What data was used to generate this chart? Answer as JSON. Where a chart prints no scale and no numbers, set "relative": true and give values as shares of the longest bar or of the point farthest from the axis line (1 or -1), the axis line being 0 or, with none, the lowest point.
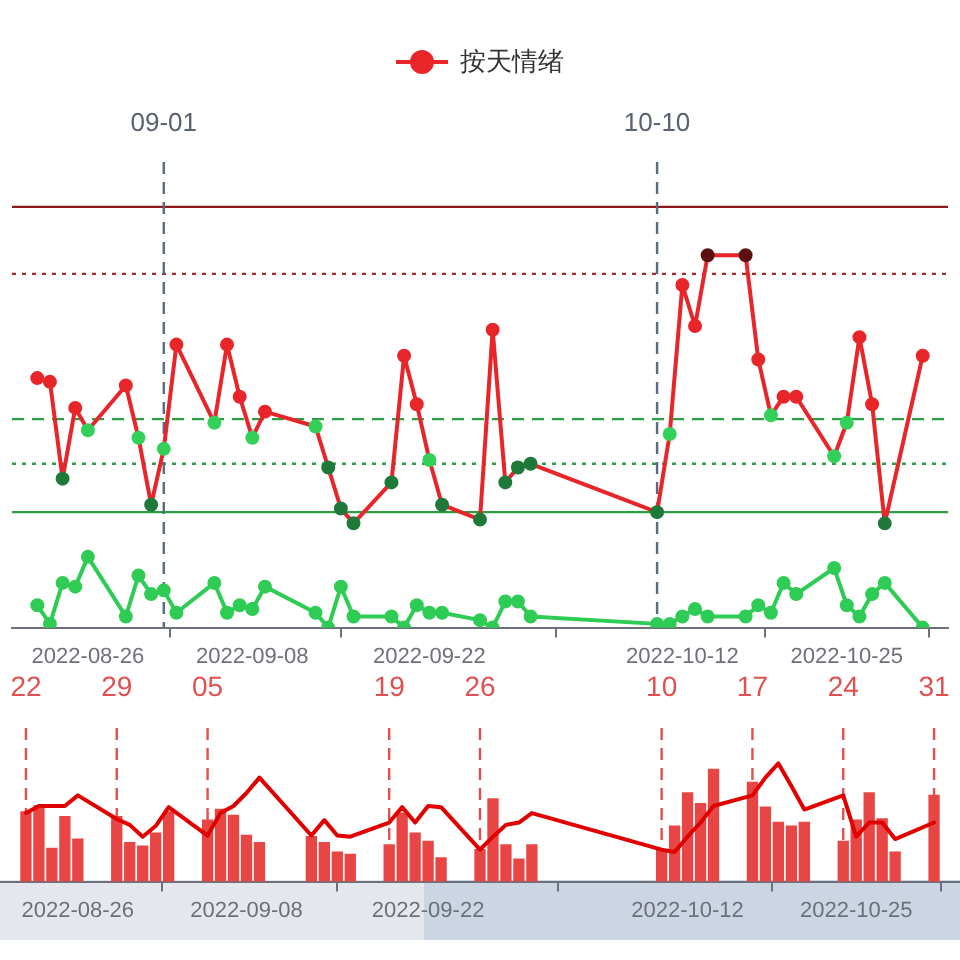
{
  "chart_data": [
    {
      "type": "line",
      "relative": true,
      "legend": "top",
      "marker": "circle",
      "xlim": [
        "2022-08-20",
        "2022-11-02"
      ],
      "x": [
        "2022-08-22",
        "2022-08-23",
        "2022-08-24",
        "2022-08-25",
        "2022-08-26",
        "2022-08-29",
        "2022-08-30",
        "2022-08-31",
        "2022-09-01",
        "2022-09-02",
        "2022-09-05",
        "2022-09-06",
        "2022-09-07",
        "2022-09-08",
        "2022-09-09",
        "2022-09-13",
        "2022-09-14",
        "2022-09-15",
        "2022-09-16",
        "2022-09-19",
        "2022-09-20",
        "2022-09-21",
        "2022-09-22",
        "2022-09-23",
        "2022-09-26",
        "2022-09-27",
        "2022-09-28",
        "2022-09-29",
        "2022-09-30",
        "2022-10-10",
        "2022-10-11",
        "2022-10-12",
        "2022-10-13",
        "2022-10-14",
        "2022-10-17",
        "2022-10-18",
        "2022-10-19",
        "2022-10-20",
        "2022-10-21",
        "2022-10-24",
        "2022-10-25",
        "2022-10-26",
        "2022-10-27",
        "2022-10-28",
        "2022-10-31"
      ],
      "xticks": [
        "2022-08-26",
        "2022-09-08",
        "2022-09-22",
        "2022-10-12",
        "2022-10-25"
      ],
      "series": [
        {
          "name": "按天情绪",
          "color": "#e8262a",
          "values": [
            0.67,
            0.66,
            0.4,
            0.59,
            0.53,
            0.65,
            0.51,
            0.33,
            0.48,
            0.76,
            0.55,
            0.76,
            0.62,
            0.51,
            0.58,
            0.54,
            0.43,
            0.32,
            0.28,
            0.39,
            0.73,
            0.6,
            0.45,
            0.33,
            0.29,
            0.8,
            0.39,
            0.43,
            0.44,
            0.31,
            0.52,
            0.92,
            0.81,
            1,
            1,
            0.72,
            0.57,
            0.62,
            0.62,
            0.46,
            0.55,
            0.78,
            0.6,
            0.28,
            0.73
          ],
          "colors": [
            "#e8262a",
            "#e8262a",
            "#1f7a3a",
            "#e8262a",
            "#33d05a",
            "#e8262a",
            "#33d05a",
            "#1f7a3a",
            "#33d05a",
            "#e8262a",
            "#33d05a",
            "#e8262a",
            "#e8262a",
            "#33d05a",
            "#e8262a",
            "#33d05a",
            "#1f7a3a",
            "#1f7a3a",
            "#1f7a3a",
            "#1f7a3a",
            "#e8262a",
            "#e8262a",
            "#33d05a",
            "#1f7a3a",
            "#1f7a3a",
            "#e8262a",
            "#1f7a3a",
            "#1f7a3a",
            "#1f7a3a",
            "#1f7a3a",
            "#33d05a",
            "#e8262a",
            "#e8262a",
            "#5c1010",
            "#5c1010",
            "#e8262a",
            "#33d05a",
            "#e8262a",
            "#e8262a",
            "#33d05a",
            "#33d05a",
            "#e8262a",
            "#e8262a",
            "#1f7a3a",
            "#e8262a"
          ]
        },
        {
          "color": "#2ecc55",
          "values": [
            0.06,
            0.01,
            0.12,
            0.11,
            0.19,
            0.03,
            0.14,
            0.09,
            0.1,
            0.04,
            0.12,
            0.04,
            0.06,
            0.05,
            0.11,
            0.04,
            0,
            0.11,
            0.03,
            0.03,
            0,
            0.06,
            0.04,
            0.04,
            0.02,
            0,
            0.07,
            0.07,
            0.03,
            0.01,
            0.01,
            0.03,
            0.05,
            0.03,
            0.03,
            0.06,
            0.04,
            0.12,
            0.09,
            0.16,
            0.06,
            0.03,
            0.09,
            0.12,
            0
          ]
        }
      ],
      "ref_lines": [
        {
          "axis": "y",
          "value": 1.13,
          "color": "#8b1a1a",
          "line_style": "solid"
        },
        {
          "axis": "y",
          "value": 0.95,
          "color": "#a52a2a",
          "line_style": "dotted"
        },
        {
          "axis": "y",
          "value": 0.56,
          "color": "#2e9e44",
          "line_style": "dashed"
        },
        {
          "axis": "y",
          "value": 0.44,
          "color": "#2e9e44",
          "line_style": "dotted"
        },
        {
          "axis": "y",
          "value": 0.31,
          "color": "#2e9e44",
          "line_style": "solid"
        },
        {
          "axis": "x",
          "value": "2022-09-01",
          "label": "09-01",
          "color": "#5a6a80",
          "line_style": "dashed"
        },
        {
          "axis": "x",
          "value": "2022-10-10",
          "label": "10-10",
          "color": "#5a6a80",
          "line_style": "dashed"
        }
      ]
    },
    {
      "type": "bar",
      "relative": true,
      "xlim": [
        "2022-08-20",
        "2022-11-02"
      ],
      "x": [
        "2022-08-22",
        "2022-08-23",
        "2022-08-24",
        "2022-08-25",
        "2022-08-26",
        "2022-08-29",
        "2022-08-30",
        "2022-08-31",
        "2022-09-01",
        "2022-09-02",
        "2022-09-05",
        "2022-09-06",
        "2022-09-07",
        "2022-09-08",
        "2022-09-09",
        "2022-09-13",
        "2022-09-14",
        "2022-09-15",
        "2022-09-16",
        "2022-09-19",
        "2022-09-20",
        "2022-09-21",
        "2022-09-22",
        "2022-09-23",
        "2022-09-26",
        "2022-09-27",
        "2022-09-28",
        "2022-09-29",
        "2022-09-30",
        "2022-10-10",
        "2022-10-11",
        "2022-10-12",
        "2022-10-13",
        "2022-10-14",
        "2022-10-17",
        "2022-10-18",
        "2022-10-19",
        "2022-10-20",
        "2022-10-21",
        "2022-10-24",
        "2022-10-25",
        "2022-10-26",
        "2022-10-27",
        "2022-10-28",
        "2022-10-31"
      ],
      "xticks": [
        "2022-08-26",
        "2022-09-08",
        "2022-09-22",
        "2022-10-12",
        "2022-10-25"
      ],
      "series": [
        {
          "color": "#e84545",
          "values": [
            0.59,
            0.64,
            0.28,
            0.55,
            0.36,
            0.55,
            0.33,
            0.3,
            0.41,
            0.59,
            0.52,
            0.61,
            0.56,
            0.39,
            0.33,
            0.38,
            0.33,
            0.25,
            0.23,
            0.31,
            0.58,
            0.41,
            0.34,
            0.2,
            0.27,
            0.7,
            0.31,
            0.19,
            0.31,
            0.27,
            0.47,
            0.75,
            0.66,
            0.95,
            0.84,
            0.63,
            0.5,
            0.47,
            0.5,
            0.34,
            0.52,
            0.75,
            0.53,
            0.25,
            0.73
          ]
        },
        {
          "type": "line",
          "color": "#e00000",
          "values": [
            0.58,
            0.64,
            0.64,
            0.64,
            0.73,
            0.53,
            0.48,
            0.38,
            0.47,
            0.63,
            0.39,
            0.58,
            0.64,
            0.75,
            0.88,
            0.39,
            0.52,
            0.39,
            0.38,
            0.5,
            0.63,
            0.5,
            0.64,
            0.63,
            0.27,
            0.38,
            0.48,
            0.5,
            0.58,
            0.27,
            0.25,
            0.38,
            0.5,
            0.64,
            0.73,
            0.88,
            1,
            0.81,
            0.61,
            0.73,
            0.38,
            0.5,
            0.5,
            0.36,
            0.5
          ]
        }
      ],
      "ref_lines": [
        {
          "axis": "x",
          "value": "2022-08-22",
          "label": "22",
          "color": "#e05050",
          "line_style": "dashed"
        },
        {
          "axis": "x",
          "value": "2022-08-29",
          "label": "29",
          "color": "#e05050",
          "line_style": "dashed"
        },
        {
          "axis": "x",
          "value": "2022-09-05",
          "label": "05",
          "color": "#e05050",
          "line_style": "dashed"
        },
        {
          "axis": "x",
          "value": "2022-09-19",
          "label": "19",
          "color": "#e05050",
          "line_style": "dashed"
        },
        {
          "axis": "x",
          "value": "2022-09-26",
          "label": "26",
          "color": "#e05050",
          "line_style": "dashed"
        },
        {
          "axis": "x",
          "value": "2022-10-10",
          "label": "10",
          "color": "#e05050",
          "line_style": "dashed"
        },
        {
          "axis": "x",
          "value": "2022-10-17",
          "label": "17",
          "color": "#e05050",
          "line_style": "dashed"
        },
        {
          "axis": "x",
          "value": "2022-10-24",
          "label": "24",
          "color": "#e05050",
          "line_style": "dashed"
        },
        {
          "axis": "x",
          "value": "2022-10-31",
          "label": "31",
          "color": "#e05050",
          "line_style": "dashed"
        }
      ]
    }
  ]
}
